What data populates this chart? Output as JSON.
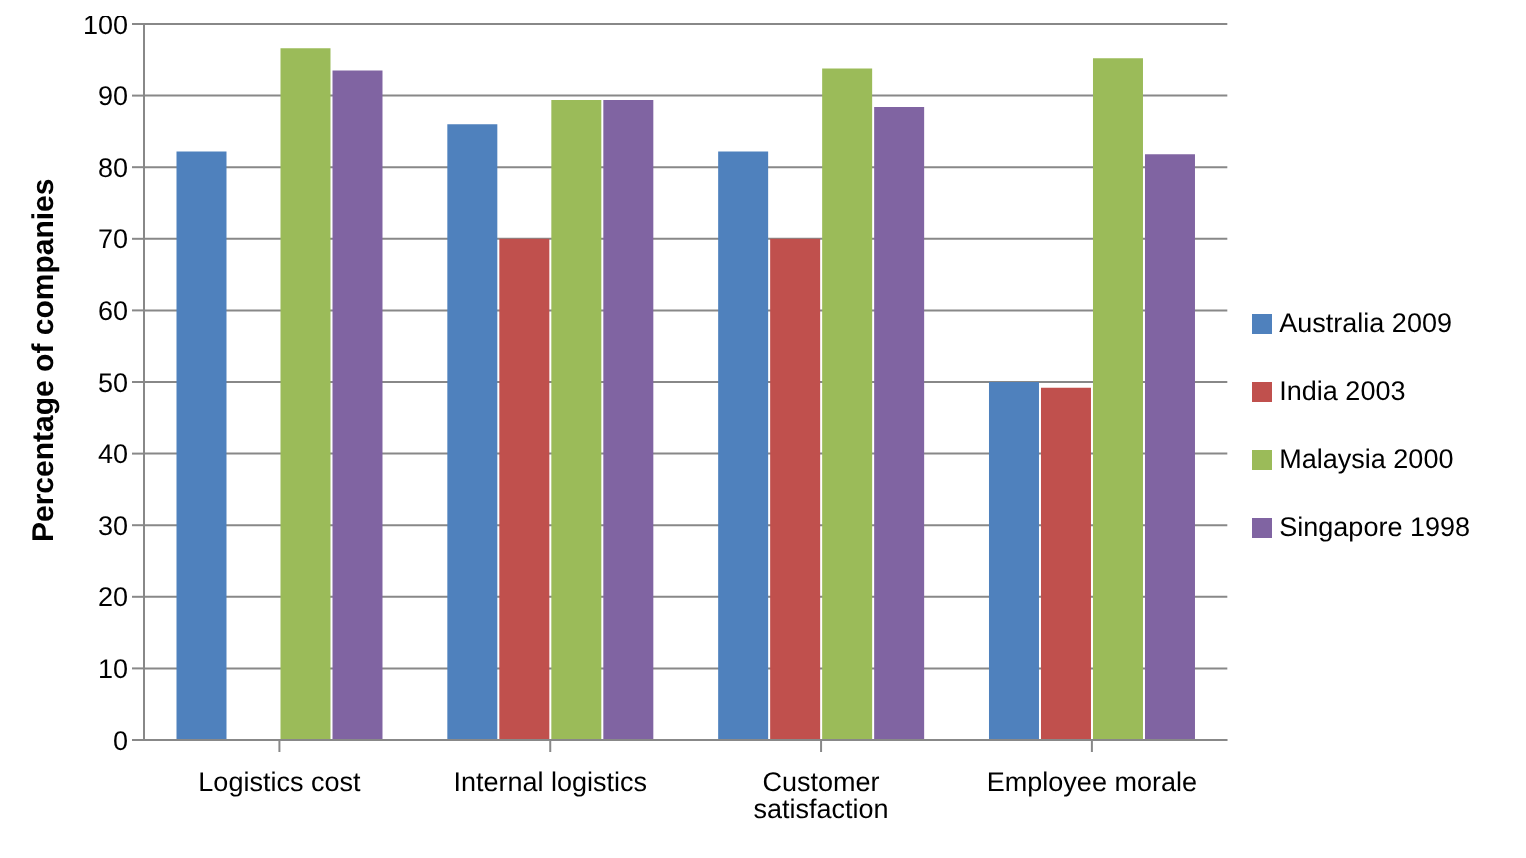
{
  "chart_data": {
    "type": "bar",
    "ylabel": "Percentage of companies",
    "categories": [
      "Logistics cost",
      "Internal logistics",
      "Customer satisfaction",
      "Employee morale"
    ],
    "series": [
      {
        "name": "Australia 2009",
        "color": "#4f81bd",
        "values": [
          82.2,
          86.0,
          82.2,
          50.0
        ]
      },
      {
        "name": "India 2003",
        "color": "#c0504d",
        "values": [
          null,
          70.0,
          70.0,
          49.2
        ]
      },
      {
        "name": "Malaysia 2000",
        "color": "#9bbb59",
        "values": [
          96.6,
          89.4,
          93.8,
          95.2
        ]
      },
      {
        "name": "Singapore 1998",
        "color": "#8064a2",
        "values": [
          93.5,
          89.4,
          88.4,
          81.8
        ]
      }
    ],
    "ylim": [
      0,
      100
    ],
    "yticks": [
      0,
      10,
      20,
      30,
      40,
      50,
      60,
      70,
      80,
      90,
      100
    ],
    "grid": "y",
    "legend": "right"
  }
}
